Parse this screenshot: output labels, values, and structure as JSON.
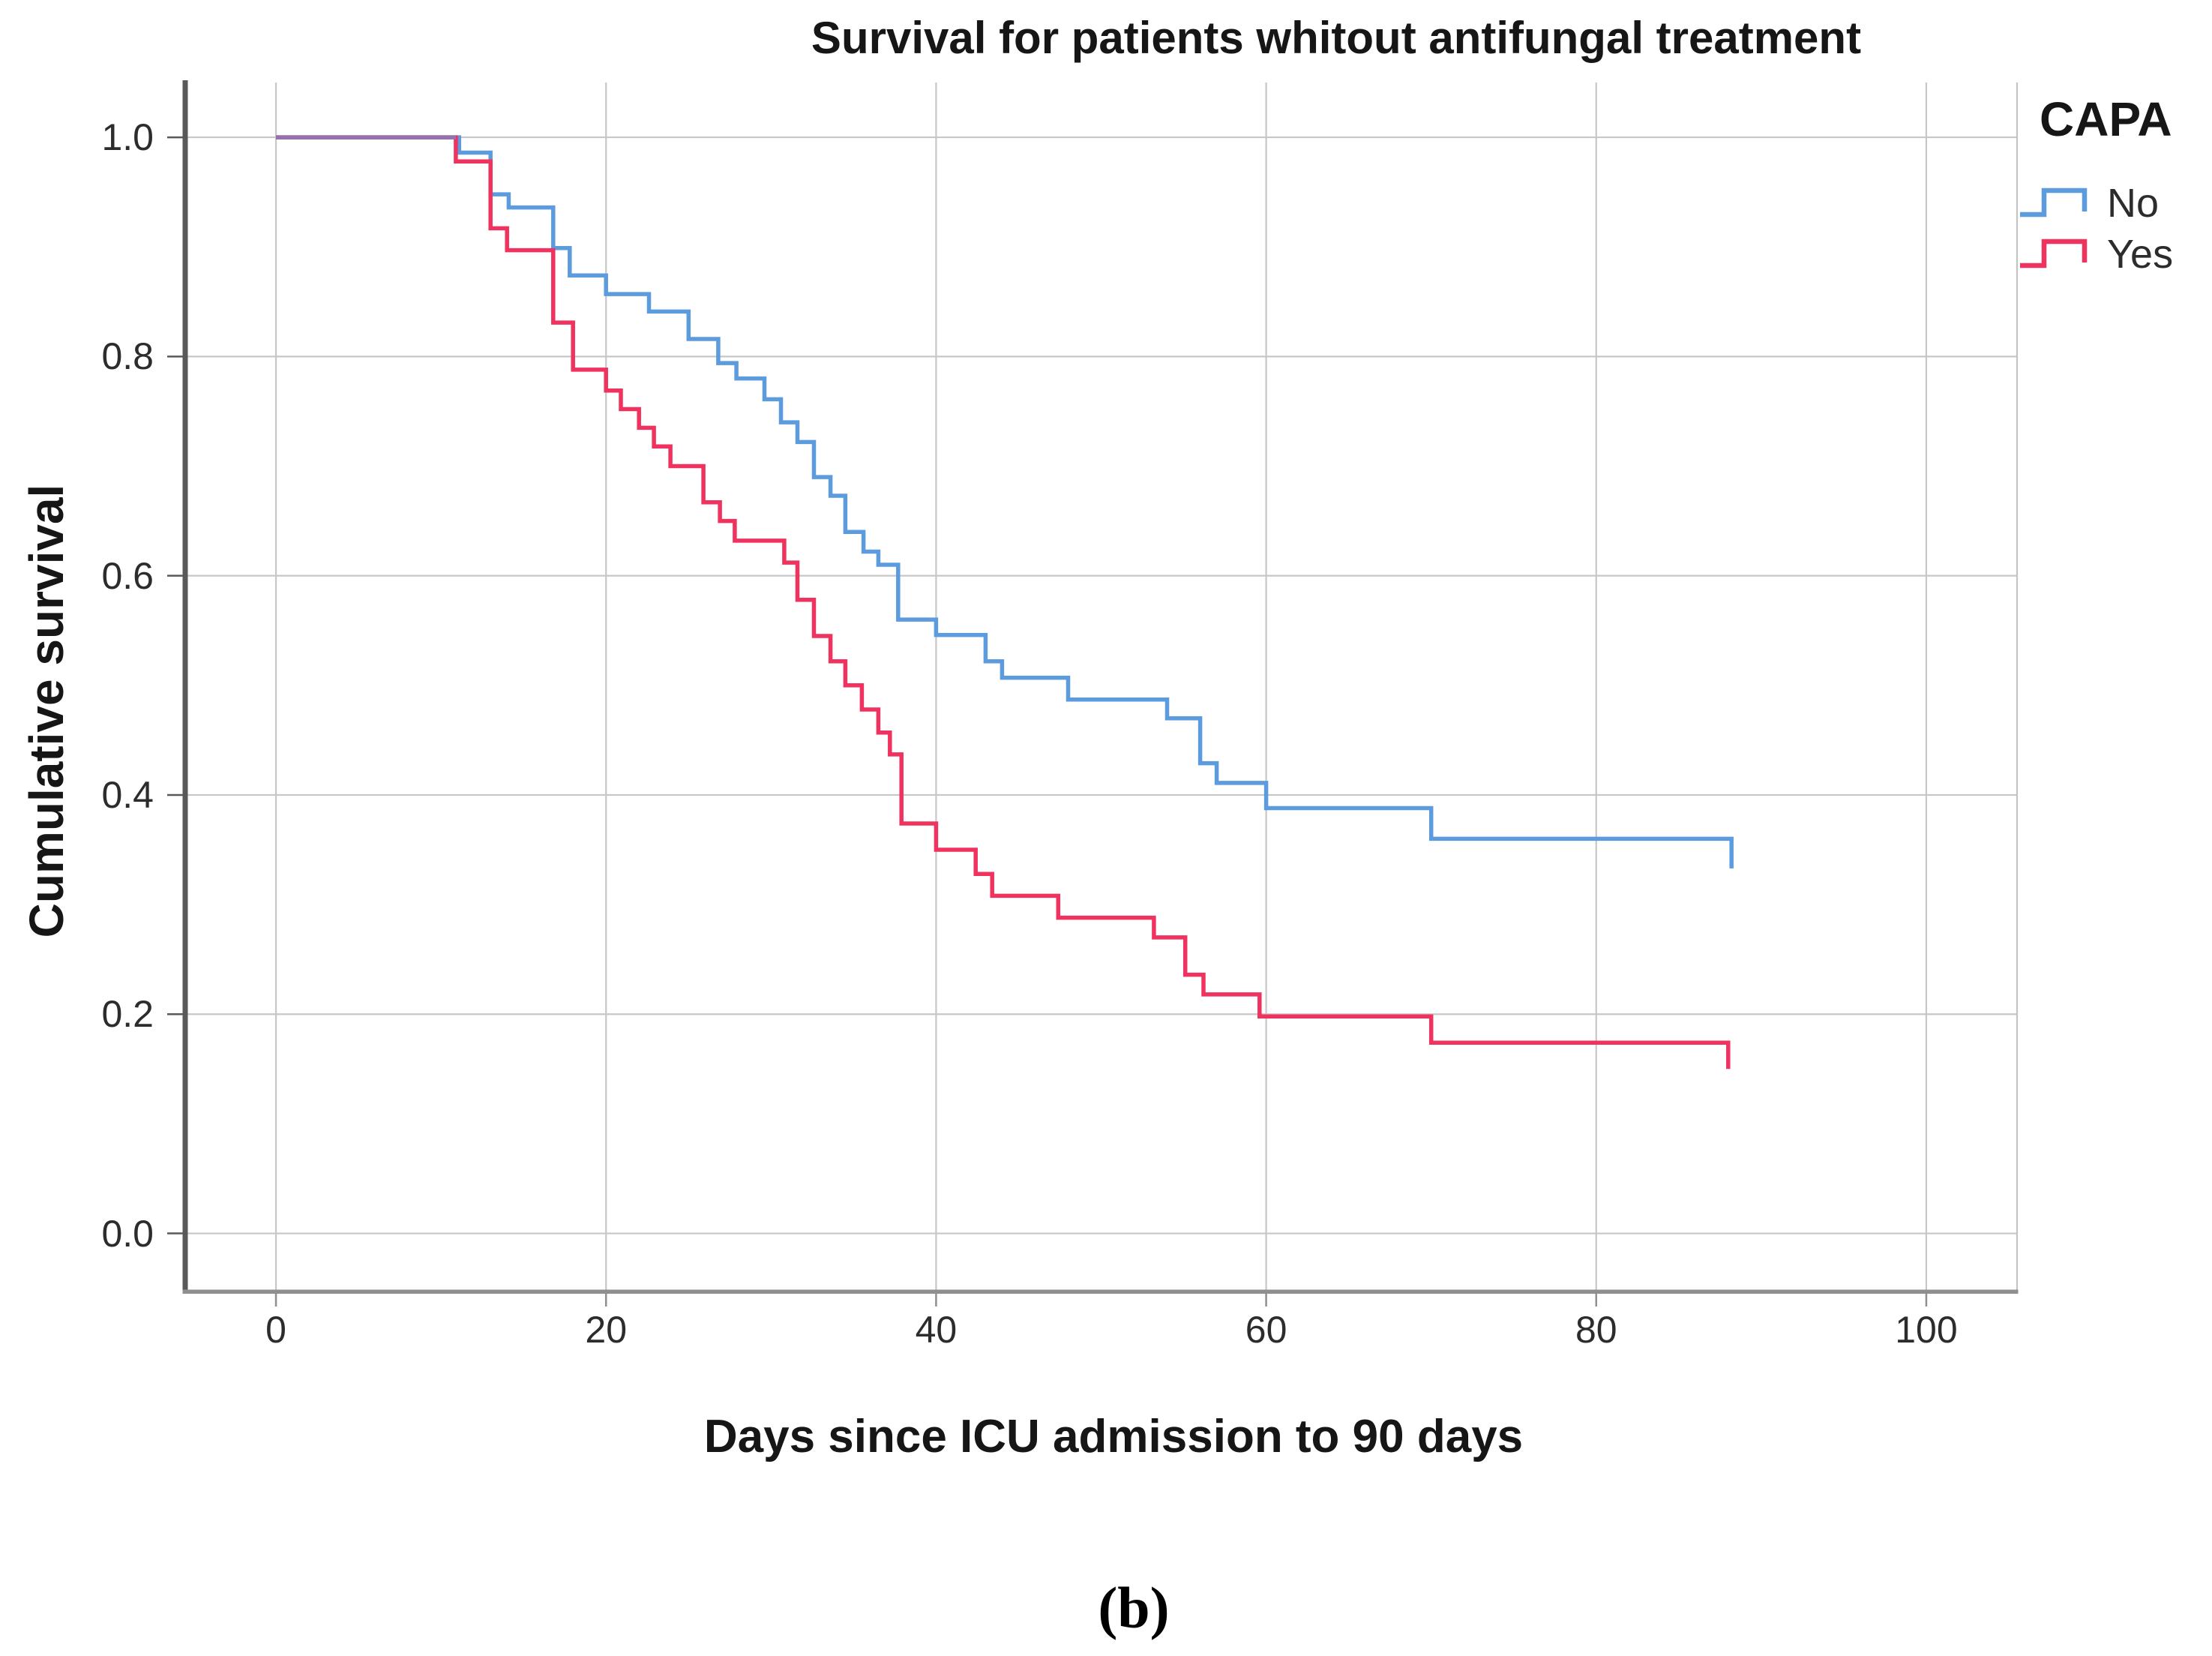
{
  "figure": {
    "title": "Survival for patients whitout antifungal treatment",
    "caption": "(b)"
  },
  "axes": {
    "x": {
      "label": "Days since ICU admission to 90 days",
      "tick_labels": [
        "0",
        "20",
        "40",
        "60",
        "80",
        "100"
      ]
    },
    "y": {
      "label": "Cumulative survival",
      "tick_labels": [
        "1.0",
        "0.8",
        "0.6",
        "0.4",
        "0.2",
        "0.0"
      ]
    }
  },
  "legend": {
    "title": "CAPA",
    "items": [
      {
        "label": "No",
        "color": "#5b9bde"
      },
      {
        "label": "Yes",
        "color": "#f0325f"
      }
    ]
  },
  "colors": {
    "background": "#ffffff",
    "grid": "#c7c7c7",
    "frame_right": "#c4c4c4",
    "axis_left": "#595959",
    "axis_bottom": "#8f8f8f",
    "tick_y": "#595959",
    "tick_x": "#8f8f8f",
    "text": "#161616",
    "series_no": "#5b9bde",
    "series_yes": "#f0325f"
  },
  "chart_data": {
    "type": "line",
    "subtype": "kaplan-meier-step",
    "title": "Survival for patients whitout antifungal treatment",
    "xlabel": "Days since ICU admission to 90 days",
    "ylabel": "Cumulative survival",
    "xlim": [
      -5.5,
      105.5
    ],
    "ylim": [
      -0.053,
      1.05
    ],
    "xticks": [
      0,
      20,
      40,
      60,
      80,
      100
    ],
    "yticks": [
      1.0,
      0.8,
      0.6,
      0.4,
      0.2,
      0.0
    ],
    "grid": true,
    "legend_position": "top-right",
    "legend_title": "CAPA",
    "series": [
      {
        "name": "No",
        "color": "#5b9bde",
        "steps": [
          [
            0,
            1.0
          ],
          [
            11.1,
            0.986
          ],
          [
            13,
            0.948
          ],
          [
            14.1,
            0.936
          ],
          [
            16.8,
            0.899
          ],
          [
            17.8,
            0.874
          ],
          [
            20,
            0.857
          ],
          [
            22.6,
            0.841
          ],
          [
            25,
            0.816
          ],
          [
            26.8,
            0.794
          ],
          [
            27.9,
            0.78
          ],
          [
            29.6,
            0.761
          ],
          [
            30.6,
            0.74
          ],
          [
            31.6,
            0.722
          ],
          [
            32.6,
            0.69
          ],
          [
            33.6,
            0.673
          ],
          [
            34.5,
            0.64
          ],
          [
            35.6,
            0.622
          ],
          [
            36.5,
            0.61
          ],
          [
            37.7,
            0.56
          ],
          [
            40,
            0.546
          ],
          [
            43,
            0.522
          ],
          [
            44,
            0.507
          ],
          [
            48,
            0.487
          ],
          [
            54,
            0.47
          ],
          [
            56,
            0.429
          ],
          [
            57,
            0.411
          ],
          [
            60,
            0.388
          ],
          [
            70,
            0.36
          ],
          [
            88.2,
            0.333
          ]
        ]
      },
      {
        "name": "Yes",
        "color": "#f0325f",
        "steps": [
          [
            0,
            1.0
          ],
          [
            10.9,
            0.978
          ],
          [
            13,
            0.917
          ],
          [
            14,
            0.897
          ],
          [
            16.8,
            0.831
          ],
          [
            18,
            0.788
          ],
          [
            20,
            0.769
          ],
          [
            20.9,
            0.752
          ],
          [
            22,
            0.735
          ],
          [
            22.9,
            0.718
          ],
          [
            23.9,
            0.7
          ],
          [
            25.9,
            0.667
          ],
          [
            26.9,
            0.65
          ],
          [
            27.8,
            0.632
          ],
          [
            30.8,
            0.612
          ],
          [
            31.6,
            0.578
          ],
          [
            32.6,
            0.545
          ],
          [
            33.6,
            0.522
          ],
          [
            34.5,
            0.5
          ],
          [
            35.5,
            0.478
          ],
          [
            36.5,
            0.457
          ],
          [
            37.2,
            0.437
          ],
          [
            37.9,
            0.374
          ],
          [
            40,
            0.35
          ],
          [
            42.4,
            0.328
          ],
          [
            43.4,
            0.308
          ],
          [
            47.4,
            0.288
          ],
          [
            53.2,
            0.27
          ],
          [
            55.1,
            0.236
          ],
          [
            56.2,
            0.218
          ],
          [
            59.6,
            0.198
          ],
          [
            70,
            0.174
          ],
          [
            88,
            0.15
          ]
        ]
      }
    ]
  }
}
